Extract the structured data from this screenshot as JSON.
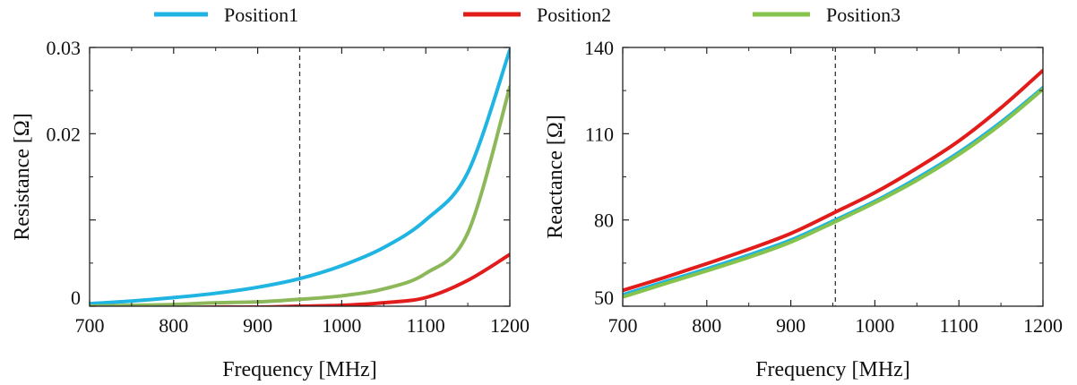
{
  "legend": [
    {
      "name": "Position1",
      "color": "#1fb4e2"
    },
    {
      "name": "Position2",
      "color": "#e21b1b"
    },
    {
      "name": "Position3",
      "color": "#86c34d"
    }
  ],
  "chart_data": [
    {
      "type": "line",
      "xlabel": "Frequency [MHz]",
      "ylabel": "Resistance [Ω]",
      "xlim": [
        700,
        1200
      ],
      "ylim": [
        0,
        0.03
      ],
      "xticks": [
        700,
        800,
        900,
        1000,
        1100,
        1200
      ],
      "xtick_labels": [
        "700",
        "800",
        "900",
        "1000",
        "1100",
        "1200"
      ],
      "yticks": [
        0,
        0.01,
        0.02,
        0.03
      ],
      "ytick_labels": [
        "0",
        "",
        "0.02",
        "0.03"
      ],
      "vline_x": 950,
      "grid": false,
      "x": [
        700,
        750,
        800,
        850,
        900,
        950,
        1000,
        1050,
        1100,
        1150,
        1200
      ],
      "series": [
        {
          "name": "Position1",
          "color": "#1fb4e2",
          "values": [
            0.0003,
            0.0006,
            0.001,
            0.0015,
            0.0022,
            0.0032,
            0.0047,
            0.0068,
            0.01,
            0.0155,
            0.0297
          ]
        },
        {
          "name": "Position2",
          "color": "#e21b1b",
          "values": [
            -0.0002,
            -0.0002,
            -0.0002,
            -0.0001,
            -0.0001,
            0.0,
            0.0001,
            0.0004,
            0.001,
            0.003,
            0.006
          ]
        },
        {
          "name": "Position3",
          "color": "#8db85a",
          "values": [
            0.0,
            0.0001,
            0.0002,
            0.0004,
            0.0005,
            0.0008,
            0.0012,
            0.002,
            0.0038,
            0.0085,
            0.0254
          ]
        }
      ]
    },
    {
      "type": "line",
      "xlabel": "Frequency [MHz]",
      "ylabel": "Reactance [Ω]",
      "xlim": [
        700,
        1200
      ],
      "ylim": [
        50,
        140
      ],
      "xticks": [
        700,
        800,
        900,
        1000,
        1100,
        1200
      ],
      "xtick_labels": [
        "700",
        "800",
        "900",
        "1000",
        "1100",
        "1200"
      ],
      "yticks": [
        50,
        80,
        110,
        140
      ],
      "ytick_labels": [
        "50",
        "80",
        "110",
        "140"
      ],
      "vline_x": 953,
      "grid": false,
      "x": [
        700,
        750,
        800,
        850,
        900,
        950,
        1000,
        1050,
        1100,
        1150,
        1200
      ],
      "series": [
        {
          "name": "Position1",
          "color": "#1fb4e2",
          "values": [
            54.0,
            58.5,
            63.0,
            67.8,
            73.0,
            79.6,
            86.5,
            94.5,
            103.5,
            114.0,
            126.0
          ]
        },
        {
          "name": "Position2",
          "color": "#e21b1b",
          "values": [
            55.5,
            60.0,
            64.8,
            69.8,
            75.3,
            82.3,
            89.5,
            98.0,
            107.5,
            119.0,
            132.0
          ]
        },
        {
          "name": "Position3",
          "color": "#86c34d",
          "values": [
            53.2,
            57.8,
            62.3,
            67.0,
            72.3,
            79.0,
            86.0,
            93.8,
            102.8,
            113.3,
            125.5
          ]
        }
      ]
    }
  ]
}
